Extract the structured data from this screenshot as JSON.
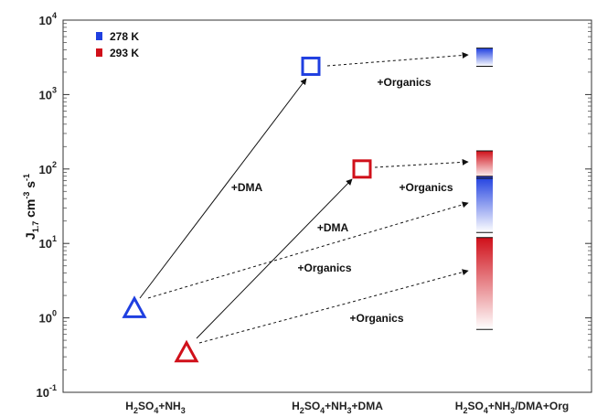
{
  "chart_data": {
    "type": "scatter",
    "title": "",
    "y_scale": "log",
    "ylim": [
      0.1,
      10000
    ],
    "ylabel_parts": [
      "J",
      "1.7",
      " cm",
      "-3",
      " s",
      "-1"
    ],
    "y_ticks": [
      {
        "value": 0.1,
        "base": "10",
        "exp": "-1"
      },
      {
        "value": 1,
        "base": "10",
        "exp": "0"
      },
      {
        "value": 10,
        "base": "10",
        "exp": "1"
      },
      {
        "value": 100,
        "base": "10",
        "exp": "2"
      },
      {
        "value": 1000,
        "base": "10",
        "exp": "3"
      },
      {
        "value": 10000,
        "base": "10",
        "exp": "4"
      }
    ],
    "categories": [
      {
        "key": "H2SO4+NH3",
        "parts": [
          [
            "H",
            false
          ],
          [
            "2",
            true
          ],
          [
            "SO",
            false
          ],
          [
            "4",
            true
          ],
          [
            "+NH",
            false
          ],
          [
            "3",
            true
          ]
        ]
      },
      {
        "key": "H2SO4+NH3+DMA",
        "parts": [
          [
            "H",
            false
          ],
          [
            "2",
            true
          ],
          [
            "SO",
            false
          ],
          [
            "4",
            true
          ],
          [
            "+NH",
            false
          ],
          [
            "3",
            true
          ],
          [
            "+DMA",
            false
          ]
        ]
      },
      {
        "key": "H2SO4+NH3/DMA+Org",
        "parts": [
          [
            "H",
            false
          ],
          [
            "2",
            true
          ],
          [
            "SO",
            false
          ],
          [
            "4",
            true
          ],
          [
            "+NH",
            false
          ],
          [
            "3",
            true
          ],
          [
            "/DMA+Org",
            false
          ]
        ]
      }
    ],
    "legend": {
      "position": "top-left",
      "items": [
        {
          "label": "278 K",
          "color": "#1f3fe0"
        },
        {
          "label": "293 K",
          "color": "#d0101a"
        }
      ]
    },
    "series": [
      {
        "name": "278 K",
        "color": "#1f3fe0",
        "points": [
          {
            "x": "H2SO4+NH3",
            "y": 1.3,
            "marker": "triangle"
          },
          {
            "x": "H2SO4+NH3+DMA",
            "y": 2400,
            "marker": "square"
          }
        ],
        "ranges": [
          {
            "x": "H2SO4+NH3/DMA+Org",
            "y_low": 2400,
            "y_high": 4200
          },
          {
            "x": "H2SO4+NH3/DMA+Org",
            "y_low": 14,
            "y_high": 80
          }
        ]
      },
      {
        "name": "293 K",
        "color": "#d0101a",
        "points": [
          {
            "x": "H2SO4+NH3",
            "y": 0.33,
            "marker": "triangle"
          },
          {
            "x": "H2SO4+NH3+DMA",
            "y": 100,
            "marker": "square"
          }
        ],
        "ranges": [
          {
            "x": "H2SO4+NH3/DMA+Org",
            "y_low": 75,
            "y_high": 175
          },
          {
            "x": "H2SO4+NH3/DMA+Org",
            "y_low": 0.7,
            "y_high": 12
          }
        ]
      }
    ],
    "arrows": [
      {
        "from": {
          "x": "H2SO4+NH3",
          "y": 1.6
        },
        "to": {
          "x": "H2SO4+NH3+DMA",
          "y": 2000
        },
        "style": "solid",
        "label": "+DMA"
      },
      {
        "from": {
          "x": "H2SO4+NH3",
          "y": 0.4
        },
        "to": {
          "x": "H2SO4+NH3+DMA",
          "y": 90
        },
        "style": "solid",
        "label": "+DMA"
      },
      {
        "from": {
          "x": "H2SO4+NH3+DMA",
          "y": 2400
        },
        "to": {
          "x": "H2SO4+NH3/DMA+Org",
          "y": 3600
        },
        "style": "dashed",
        "label": "+Organics"
      },
      {
        "from": {
          "x": "H2SO4+NH3+DMA",
          "y": 100
        },
        "to": {
          "x": "H2SO4+NH3/DMA+Org",
          "y": 120
        },
        "style": "dashed",
        "label": "+Organics"
      },
      {
        "from": {
          "x": "H2SO4+NH3",
          "y": 1.3
        },
        "to": {
          "x": "H2SO4+NH3/DMA+Org",
          "y": 35
        },
        "style": "dashed",
        "label": "+Organics"
      },
      {
        "from": {
          "x": "H2SO4+NH3",
          "y": 0.33
        },
        "to": {
          "x": "H2SO4+NH3/DMA+Org",
          "y": 4.5
        },
        "style": "dashed",
        "label": "+Organics"
      }
    ]
  }
}
